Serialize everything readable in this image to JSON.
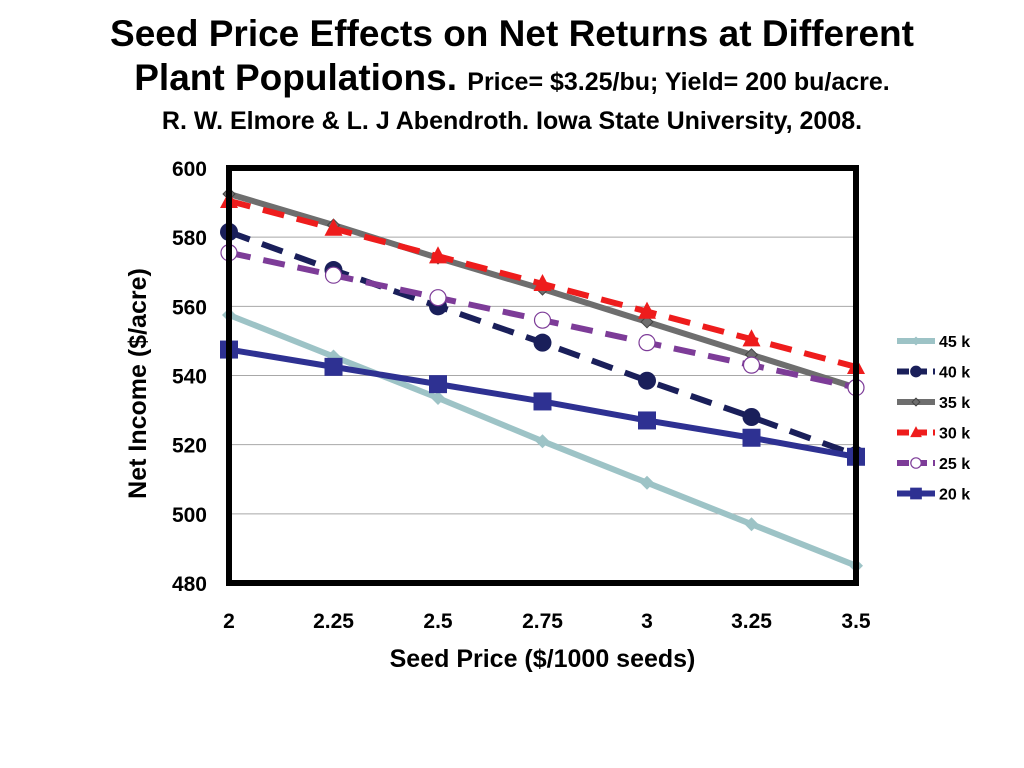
{
  "title": {
    "line1": "Seed Price Effects on Net Returns at Different",
    "line2_main": "Plant Populations.",
    "line2_sub": "Price= $3.25/bu; Yield= 200 bu/acre.",
    "line3": "R. W. Elmore & L. J Abendroth. Iowa State University, 2008."
  },
  "chart_data": {
    "type": "line",
    "xlabel": "Seed Price ($/1000 seeds)",
    "ylabel": "Net Income ($/acre)",
    "x": [
      2,
      2.25,
      2.5,
      2.75,
      3,
      3.25,
      3.5
    ],
    "x_tick_labels": [
      "2",
      "2.25",
      "2.5",
      "2.75",
      "3",
      "3.25",
      "3.5"
    ],
    "ylim": [
      480,
      600
    ],
    "y_ticks": [
      480,
      500,
      520,
      540,
      560,
      580,
      600
    ],
    "grid": "horizontal",
    "legend_position": "right",
    "series": [
      {
        "name": "45 k",
        "color": "#9dc3c6",
        "dash": "solid",
        "marker": "diamond",
        "values": [
          557.5,
          545.5,
          533.5,
          521,
          509,
          497,
          485
        ]
      },
      {
        "name": "40 k",
        "color": "#1a1f5a",
        "dash": "dashed",
        "marker": "circle",
        "values": [
          581.5,
          570.5,
          560,
          549.5,
          538.5,
          528,
          517
        ]
      },
      {
        "name": "35 k",
        "color": "#6e6e6e",
        "dash": "solid",
        "marker": "small-diamond",
        "values": [
          592.5,
          583.5,
          574,
          565,
          555.5,
          546,
          536.5
        ]
      },
      {
        "name": "30 k",
        "color": "#ee1c1c",
        "dash": "dashed",
        "marker": "triangle",
        "values": [
          590.5,
          582.5,
          574.5,
          566.5,
          558.5,
          550.5,
          542.5
        ]
      },
      {
        "name": "25 k",
        "color": "#7d3c98",
        "dash": "dashed",
        "marker": "open-circle",
        "values": [
          575.5,
          569,
          562.5,
          556,
          549.5,
          543,
          536.5
        ]
      },
      {
        "name": "20 k",
        "color": "#2e3192",
        "dash": "solid",
        "marker": "square",
        "values": [
          547.5,
          542.5,
          537.5,
          532.5,
          527,
          522,
          516.5
        ]
      }
    ]
  }
}
